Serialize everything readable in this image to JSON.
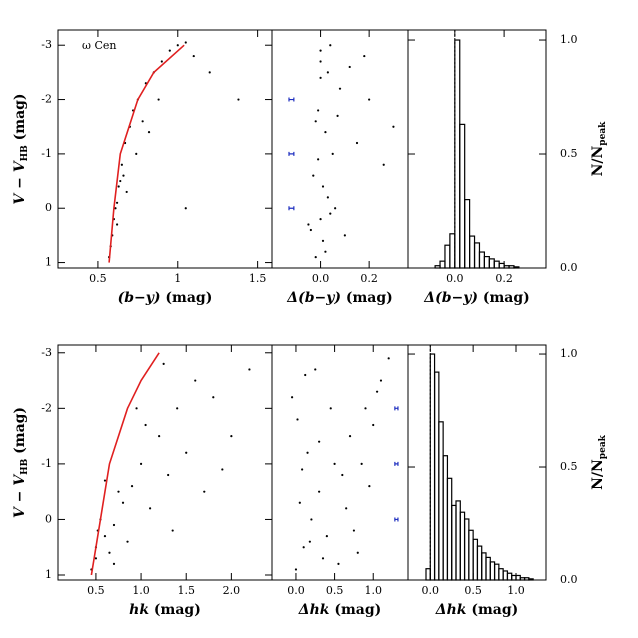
{
  "chart_data": [
    {
      "type": "scatter",
      "xlabel": [
        "(b−y)",
        "  (mag)"
      ],
      "ylabel": [
        "V − V",
        "HB",
        " (mag)"
      ],
      "annotation": "ω  Cen",
      "xlim": [
        0.25,
        1.59
      ],
      "ylim": [
        1.1,
        -3.28
      ],
      "xticks": [
        {
          "value": 0.5,
          "label": "0.5"
        },
        1,
        {
          "value": 1.5,
          "label": "1.5"
        }
      ],
      "yticks": [
        -3,
        -2,
        -1,
        0,
        1
      ],
      "x": [
        0.57,
        0.59,
        0.6,
        0.62,
        0.58,
        0.63,
        0.65,
        0.61,
        0.67,
        0.7,
        0.66,
        0.72,
        0.75,
        0.8,
        0.78,
        0.85,
        0.9,
        0.95,
        1.0,
        1.05,
        1.1,
        0.68,
        0.74,
        0.82,
        0.88,
        1.2,
        1.38,
        1.05,
        0.62,
        0.64
      ],
      "y": [
        0.9,
        0.5,
        0.2,
        -0.1,
        0.7,
        -0.4,
        -0.8,
        0.0,
        -1.2,
        -1.5,
        -0.6,
        -1.8,
        -2.0,
        -2.3,
        -1.6,
        -2.5,
        -2.7,
        -2.9,
        -3.0,
        -3.05,
        -2.8,
        -0.3,
        -1.0,
        -1.4,
        -2.0,
        -2.5,
        -2.0,
        0.0,
        0.3,
        -0.5
      ],
      "color": "#000000",
      "fiducial": {
        "x": [
          0.57,
          0.6,
          0.64,
          0.75,
          0.85,
          1.04
        ],
        "y": [
          1,
          0,
          -1,
          -2,
          -2.5,
          -3
        ],
        "color": "#e02020"
      }
    },
    {
      "type": "scatter",
      "xlabel": [
        "Δ(b−y)",
        "  (mag)"
      ],
      "xlim": [
        -0.2,
        0.36
      ],
      "ylim": [
        1.1,
        -3.28
      ],
      "xticks": [
        {
          "value": 0,
          "label": "0.0"
        },
        {
          "value": 0.2,
          "label": "0.2"
        }
      ],
      "x": [
        -0.02,
        0.01,
        0.0,
        0.03,
        -0.03,
        0.05,
        0.02,
        -0.01,
        0.08,
        0.12,
        0.0,
        0.04,
        -0.04,
        0.15,
        0.2,
        0.26,
        0.06,
        0.01,
        -0.02,
        0.1,
        0.03,
        -0.05,
        0.0,
        0.07,
        0.18,
        0.3,
        0.02,
        -0.01,
        0.04,
        0.0
      ],
      "y": [
        0.9,
        0.6,
        0.2,
        -0.2,
        -0.6,
        -1.0,
        -1.4,
        -1.8,
        -2.2,
        -2.6,
        -2.9,
        -3.0,
        0.4,
        -1.2,
        -2.0,
        -0.8,
        0.0,
        -0.4,
        -1.6,
        0.5,
        -2.5,
        0.3,
        -2.7,
        -1.7,
        -2.8,
        -1.5,
        0.8,
        -0.9,
        0.1,
        -2.4
      ],
      "color": "#000000",
      "error_bars": {
        "x": [
          -0.12,
          -0.12,
          -0.12
        ],
        "y": [
          -2,
          -1,
          0
        ],
        "xerr": [
          0.01,
          0.01,
          0.01
        ],
        "color": "#2030c0"
      }
    },
    {
      "type": "histogram",
      "xlabel": [
        "Δ(b−y)",
        "  (mag)"
      ],
      "ylabel": [
        "N/N",
        "peak"
      ],
      "xlim": [
        -0.19,
        0.37
      ],
      "ylim": [
        0,
        1.044
      ],
      "xticks": [
        {
          "value": 0,
          "label": "0.0"
        },
        {
          "value": 0.2,
          "label": "0.2"
        }
      ],
      "yticks": [
        {
          "value": 0,
          "label": "0.0"
        },
        {
          "value": 0.5,
          "label": "0.5"
        },
        {
          "value": 1,
          "label": "1.0"
        }
      ],
      "bins": [
        -0.08,
        -0.06,
        -0.04,
        -0.02,
        0,
        0.02,
        0.04,
        0.06,
        0.08,
        0.1,
        0.12,
        0.14,
        0.16,
        0.18,
        0.2,
        0.22,
        0.24,
        0.26
      ],
      "values": [
        0.01,
        0.03,
        0.1,
        0.15,
        1.0,
        0.63,
        0.3,
        0.14,
        0.11,
        0.07,
        0.05,
        0.04,
        0.03,
        0.02,
        0.01,
        0.01,
        0.005
      ],
      "refline": 0
    },
    {
      "type": "scatter",
      "xlabel": [
        "hk",
        "  (mag)"
      ],
      "ylabel": [
        "V − V",
        "HB",
        " (mag)"
      ],
      "xlim": [
        0.08,
        2.45
      ],
      "ylim": [
        1.09,
        -3.14
      ],
      "xticks": [
        {
          "value": 0.5,
          "label": "0.5"
        },
        {
          "value": 1,
          "label": "1.0"
        },
        {
          "value": 1.5,
          "label": "1.5"
        },
        {
          "value": 2,
          "label": "2.0"
        }
      ],
      "yticks": [
        -3,
        -2,
        -1,
        0,
        1
      ],
      "x": [
        0.45,
        0.5,
        0.6,
        0.7,
        0.55,
        0.8,
        0.9,
        1.0,
        1.2,
        1.4,
        1.6,
        1.8,
        2.0,
        2.2,
        0.65,
        0.75,
        1.1,
        1.3,
        0.5,
        0.85,
        1.5,
        1.7,
        0.95,
        1.25,
        0.6,
        1.05,
        1.9,
        0.7,
        1.35,
        0.52
      ],
      "y": [
        0.9,
        0.5,
        0.3,
        0.1,
        0.0,
        -0.3,
        -0.6,
        -1.0,
        -1.5,
        -2.0,
        -2.5,
        -2.2,
        -1.5,
        -2.7,
        0.6,
        -0.5,
        -0.2,
        -0.8,
        0.7,
        0.4,
        -1.2,
        -0.5,
        -2.0,
        -2.8,
        -0.7,
        -1.7,
        -0.9,
        0.8,
        0.2,
        0.2
      ],
      "color": "#000000",
      "fiducial": {
        "x": [
          0.45,
          0.55,
          0.65,
          0.85,
          1.0,
          1.2
        ],
        "y": [
          1,
          0,
          -1,
          -2,
          -2.5,
          -3
        ],
        "color": "#e02020"
      }
    },
    {
      "type": "scatter",
      "xlabel": [
        "Δhk",
        "  (mag)"
      ],
      "xlim": [
        -0.31,
        1.45
      ],
      "ylim": [
        1.09,
        -3.14
      ],
      "xticks": [
        {
          "value": 0,
          "label": "0.0"
        },
        {
          "value": 0.5,
          "label": "0.5"
        },
        {
          "value": 1,
          "label": "1.0"
        }
      ],
      "x": [
        0.0,
        0.1,
        0.2,
        0.3,
        0.5,
        0.7,
        0.9,
        1.1,
        1.2,
        0.05,
        0.15,
        0.4,
        0.6,
        0.8,
        1.0,
        -0.05,
        0.25,
        0.35,
        0.45,
        0.65,
        0.85,
        0.02,
        0.12,
        0.55,
        0.75,
        0.95,
        1.05,
        0.3,
        0.18,
        0.08
      ],
      "y": [
        0.9,
        0.5,
        0.0,
        -0.5,
        -1.0,
        -1.5,
        -2.0,
        -2.5,
        -2.9,
        -0.3,
        -1.2,
        0.3,
        -0.8,
        0.6,
        -1.7,
        -2.2,
        -2.7,
        0.7,
        -2.0,
        -0.2,
        -1.0,
        -1.8,
        -2.6,
        0.8,
        0.2,
        -0.6,
        -2.3,
        -1.4,
        0.4,
        -0.9
      ],
      "color": "#000000",
      "error_bars": {
        "x": [
          1.3,
          1.3,
          1.3
        ],
        "y": [
          -2,
          -1,
          0
        ],
        "xerr": [
          0.02,
          0.02,
          0.02
        ],
        "color": "#2030c0"
      }
    },
    {
      "type": "histogram",
      "xlabel": [
        "Δhk",
        "  (mag)"
      ],
      "ylabel": [
        "N/N",
        "peak"
      ],
      "xlim": [
        -0.26,
        1.35
      ],
      "ylim": [
        0,
        1.04
      ],
      "xticks": [
        {
          "value": 0,
          "label": "0.0"
        },
        {
          "value": 0.5,
          "label": "0.5"
        },
        {
          "value": 1,
          "label": "1.0"
        }
      ],
      "yticks": [
        {
          "value": 0,
          "label": "0.0"
        },
        {
          "value": 0.5,
          "label": "0.5"
        },
        {
          "value": 1,
          "label": "1.0"
        }
      ],
      "bins": [
        -0.05,
        0,
        0.05,
        0.1,
        0.15,
        0.2,
        0.25,
        0.3,
        0.35,
        0.4,
        0.45,
        0.5,
        0.55,
        0.6,
        0.65,
        0.7,
        0.75,
        0.8,
        0.85,
        0.9,
        0.95,
        1.0,
        1.05,
        1.1,
        1.15,
        1.2
      ],
      "values": [
        0.05,
        1.0,
        0.92,
        0.7,
        0.55,
        0.45,
        0.33,
        0.35,
        0.3,
        0.27,
        0.22,
        0.18,
        0.15,
        0.12,
        0.1,
        0.08,
        0.07,
        0.05,
        0.04,
        0.03,
        0.02,
        0.02,
        0.01,
        0.01,
        0.005
      ],
      "refline": 0
    }
  ]
}
